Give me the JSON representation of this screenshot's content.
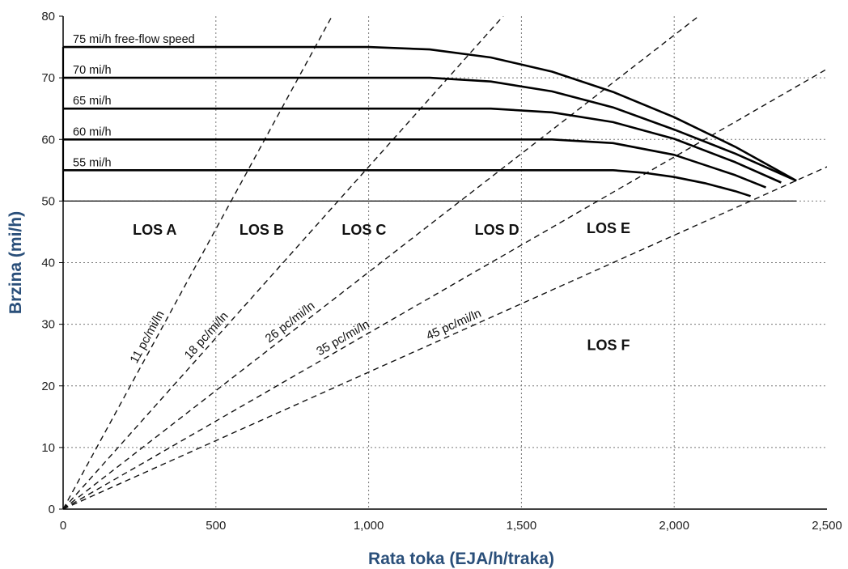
{
  "chart_data": {
    "type": "line",
    "title": "",
    "xlabel": "Rata toka  (EJA/h/traka)",
    "ylabel": "Brzina  (mi/h)",
    "xlim": [
      0,
      2500
    ],
    "ylim": [
      0,
      80
    ],
    "x_ticks": [
      0,
      500,
      1000,
      1500,
      2000,
      2500
    ],
    "x_tick_labels": [
      "0",
      "500",
      "1,000",
      "1,500",
      "2,000",
      "2,500"
    ],
    "y_ticks": [
      0,
      10,
      20,
      30,
      40,
      50,
      60,
      70,
      80
    ],
    "y_tick_labels": [
      "0",
      "10",
      "20",
      "30",
      "40",
      "50",
      "60",
      "70",
      "80"
    ],
    "grid": true,
    "series": [
      {
        "name": "75 mi/h free-flow speed",
        "label": "75 mi/h free-flow speed",
        "x": [
          0,
          1000,
          1200,
          1400,
          1600,
          1800,
          2000,
          2200,
          2400
        ],
        "y": [
          75,
          75,
          74.6,
          73.3,
          71.0,
          67.7,
          63.6,
          58.8,
          53.3
        ]
      },
      {
        "name": "70 mi/h",
        "label": "70 mi/h",
        "x": [
          0,
          1200,
          1400,
          1600,
          1800,
          2000,
          2200,
          2400
        ],
        "y": [
          70,
          70,
          69.4,
          67.8,
          65.2,
          61.6,
          57.7,
          53.3
        ]
      },
      {
        "name": "65 mi/h",
        "label": "65 mi/h",
        "x": [
          0,
          1400,
          1600,
          1800,
          2000,
          2200,
          2350
        ],
        "y": [
          65,
          65,
          64.4,
          62.8,
          60.1,
          56.3,
          53.0
        ]
      },
      {
        "name": "60 mi/h",
        "label": "60 mi/h",
        "x": [
          0,
          1600,
          1800,
          2000,
          2200,
          2300
        ],
        "y": [
          60,
          60,
          59.4,
          57.5,
          54.2,
          52.2
        ]
      },
      {
        "name": "55 mi/h",
        "label": "55 mi/h",
        "x": [
          0,
          1800,
          1900,
          2000,
          2100,
          2200,
          2250
        ],
        "y": [
          55,
          55,
          54.6,
          53.9,
          52.9,
          51.6,
          50.8
        ]
      }
    ],
    "density_lines": [
      {
        "label": "11 pc/mi/ln",
        "density": 11
      },
      {
        "label": "18 pc/mi/ln",
        "density": 18
      },
      {
        "label": "26 pc/mi/ln",
        "density": 26
      },
      {
        "label": "35 pc/mi/ln",
        "density": 35
      },
      {
        "label": "45 pc/mi/ln",
        "density": 45
      }
    ],
    "regions": [
      {
        "label": "LOS A",
        "x": 300,
        "y": 44.5
      },
      {
        "label": "LOS B",
        "x": 650,
        "y": 44.5
      },
      {
        "label": "LOS C",
        "x": 985,
        "y": 44.5
      },
      {
        "label": "LOS D",
        "x": 1420,
        "y": 44.5
      },
      {
        "label": "LOS E",
        "x": 1785,
        "y": 44.8
      },
      {
        "label": "LOS F",
        "x": 1785,
        "y": 25.8
      }
    ]
  }
}
